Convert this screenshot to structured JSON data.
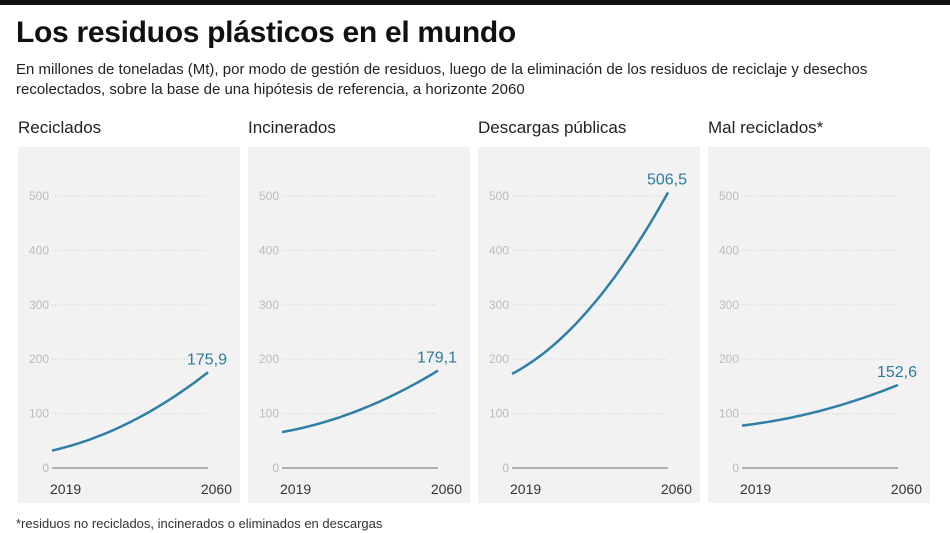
{
  "title": "Los residuos plásticos en el mundo",
  "subtitle": "En millones de toneladas (Mt), por modo de gestión de residuos, luego de la eliminación de los residuos de reciclaje y desechos recolectados, sobre la base de una hipótesis de referencia, a horizonte 2060",
  "footnote": "*residuos no reciclados, incinerados o eliminados en descargas",
  "colors": {
    "line": "#2e7ea6",
    "label": "#2a7aa0",
    "panel": "#f2f2f2"
  },
  "chart_data": [
    {
      "type": "line",
      "title": "Reciclados",
      "x": [
        2019,
        2060
      ],
      "values": [
        32,
        175.9
      ],
      "end_label": "175,9",
      "yticks": [
        0,
        100,
        200,
        300,
        400,
        500
      ],
      "ylim": [
        0,
        500
      ],
      "grid": true
    },
    {
      "type": "line",
      "title": "Incinerados",
      "x": [
        2019,
        2060
      ],
      "values": [
        66,
        179.1
      ],
      "end_label": "179,1",
      "yticks": [
        0,
        100,
        200,
        300,
        400,
        500
      ],
      "ylim": [
        0,
        500
      ],
      "grid": true
    },
    {
      "type": "line",
      "title": "Descargas públicas",
      "x": [
        2019,
        2060
      ],
      "values": [
        173,
        506.5
      ],
      "end_label": "506,5",
      "yticks": [
        0,
        100,
        200,
        300,
        400,
        500
      ],
      "ylim": [
        0,
        500
      ],
      "grid": true
    },
    {
      "type": "line",
      "title": "Mal reciclados*",
      "x": [
        2019,
        2060
      ],
      "values": [
        78,
        152.6
      ],
      "end_label": "152,6",
      "yticks": [
        0,
        100,
        200,
        300,
        400,
        500
      ],
      "ylim": [
        0,
        500
      ],
      "grid": true
    }
  ]
}
